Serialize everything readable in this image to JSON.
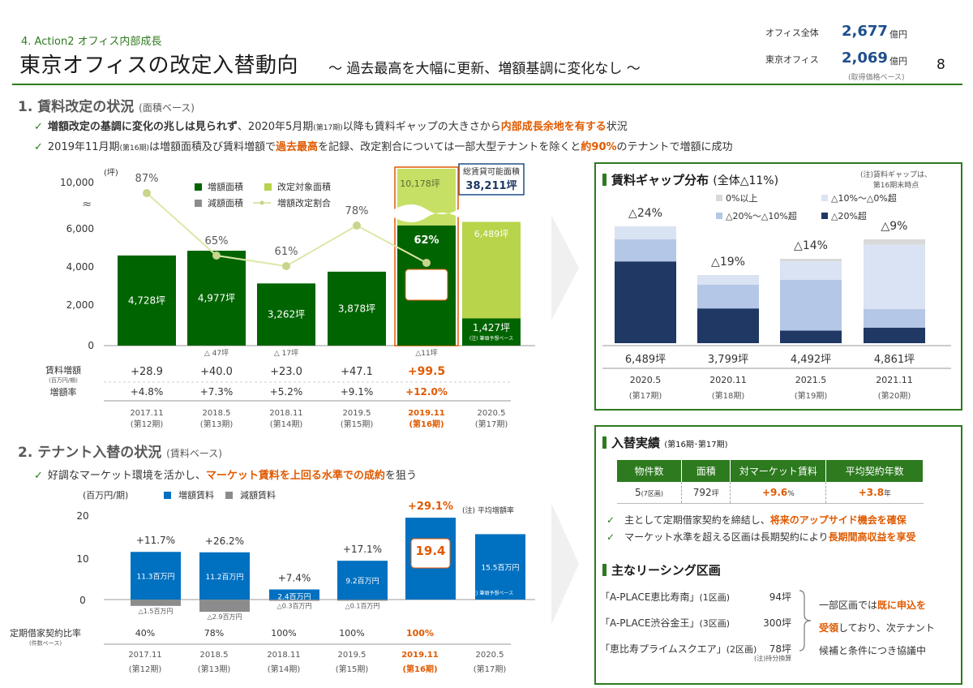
{
  "header": {
    "section_tag": "4. Action2 オフィス内部成長",
    "title": "東京オフィスの改定入替動向",
    "subtitle": "～ 過去最高を大幅に更新、増額基調に変化なし ～",
    "page_number": "8",
    "assets": [
      {
        "label": "オフィス全体",
        "value": "2,677",
        "unit": "億円"
      },
      {
        "label": "東京オフィス",
        "value": "2,069",
        "unit": "億円"
      }
    ],
    "asset_note": "(取得価格ベース)"
  },
  "section1": {
    "title": "1. 賃料改定の状況",
    "note": "(面積ベース)",
    "bullets": [
      {
        "p1": "増額改定の基調に変化の兆しは見られず",
        "p2": "、2020年5月期",
        "p3": "(第17期)",
        "p4": "以降も賃料ギャップの大きさから",
        "p5": "内部成長余地を有する",
        "p6": "状況"
      },
      {
        "p1": "2019年11月期",
        "p2": "(第16期)",
        "p3": "は増額面積及び賃料増額で",
        "p4": "過去最高",
        "p5": "を記録、改定割合については一部大型テナントを除くと",
        "p6": "約90%",
        "p7": "のテナントで増額に成功"
      }
    ]
  },
  "chart1": {
    "unit": "(坪)",
    "y_ticks": [
      "10,000",
      "6,000",
      "4,000",
      "2,000",
      "0"
    ],
    "legend": [
      "増額面積",
      "改定対象面積",
      "減額面積",
      "増額改定割合"
    ],
    "total_label": "総賃貸可能面積",
    "total_value": "38,211坪",
    "target_label": "10,178坪",
    "current_value": "6,342",
    "current_unit": "坪",
    "forecast_value": "1,427坪",
    "forecast_note": "(注) 筆頭予想ベース",
    "forecast_target": "6,489坪",
    "row_labels": {
      "rent_inc": "賃料増額",
      "rent_inc_unit": "(百万円/期)",
      "rate": "増額率"
    }
  },
  "chart_data": [
    {
      "type": "bar",
      "title": "",
      "categories": [
        "2017.11",
        "2018.5",
        "2018.11",
        "2019.5",
        "2019.11",
        "2020.5"
      ],
      "periods": [
        "(第12期)",
        "(第13期)",
        "(第14期)",
        "(第15期)",
        "(第16期)",
        "(第17期)"
      ],
      "ylabel": "(坪)",
      "ylim": [
        0,
        10000
      ],
      "series": [
        {
          "name": "増額面積",
          "values": [
            4728,
            4977,
            3262,
            3878,
            6342,
            1427
          ],
          "labels": [
            "4,728坪",
            "4,977坪",
            "3,262坪",
            "3,878坪",
            "6,342",
            "1,427坪"
          ]
        },
        {
          "name": "改定対象面積",
          "values": [
            null,
            null,
            null,
            null,
            10178,
            6489
          ]
        },
        {
          "name": "減額面積",
          "values": [
            0,
            47,
            17,
            0,
            11,
            null
          ],
          "labels": [
            "",
            "△ 47坪",
            "△ 17坪",
            "",
            "△11坪",
            ""
          ]
        },
        {
          "name": "増額改定割合",
          "values": [
            87,
            65,
            61,
            78,
            62,
            null
          ],
          "labels": [
            "87%",
            "65%",
            "61%",
            "78%",
            "62%",
            ""
          ]
        }
      ],
      "rent_increase": [
        "+28.9",
        "+40.0",
        "+23.0",
        "+47.1",
        "+99.5",
        ""
      ],
      "increase_rate": [
        "+4.8%",
        "+7.3%",
        "+5.2%",
        "+9.1%",
        "+12.0%",
        ""
      ]
    },
    {
      "type": "bar",
      "title": "賃料ギャップ分布",
      "categories": [
        "2020.5",
        "2020.11",
        "2021.5",
        "2021.11"
      ],
      "periods": [
        "(第17期)",
        "(第18期)",
        "(第19期)",
        "(第20期)"
      ],
      "totals": [
        "6,489坪",
        "3,799坪",
        "4,492坪",
        "4,861坪"
      ],
      "gap_labels": [
        "△24%",
        "△19%",
        "△14%",
        "△9%"
      ],
      "series": [
        {
          "name": "0%以上",
          "values": [
            0,
            0,
            0.03,
            0.05
          ]
        },
        {
          "name": "△10%～△0%超",
          "values": [
            0.11,
            0.14,
            0.22,
            0.62
          ]
        },
        {
          "name": "△20%～△10%超",
          "values": [
            0.19,
            0.35,
            0.6,
            0.18
          ]
        },
        {
          "name": "△20%超",
          "values": [
            0.7,
            0.51,
            0.15,
            0.15
          ]
        }
      ]
    },
    {
      "type": "bar",
      "title": "",
      "categories": [
        "2017.11",
        "2018.5",
        "2018.11",
        "2019.5",
        "2019.11",
        "2020.5"
      ],
      "periods": [
        "(第12期)",
        "(第13期)",
        "(第14期)",
        "(第15期)",
        "(第16期)",
        "(第17期)"
      ],
      "ylabel": "(百万円/期)",
      "ylim": [
        -3,
        22
      ],
      "series": [
        {
          "name": "増額賃料",
          "values": [
            11.3,
            11.2,
            2.4,
            9.2,
            19.4,
            15.5
          ],
          "labels": [
            "11.3百万円",
            "11.2百万円",
            "2.4百万円",
            "9.2百万円",
            "19.4",
            "15.5百万円"
          ]
        },
        {
          "name": "減額賃料",
          "values": [
            -1.5,
            -2.9,
            -0.3,
            -0.1,
            0,
            0
          ],
          "labels": [
            "△1.5百万円",
            "△2.9百万円",
            "△0.3百万円",
            "△0.1百万円",
            "",
            ""
          ]
        }
      ],
      "rate_labels": [
        "+11.7%",
        "+26.2%",
        "+7.4%",
        "+17.1%",
        "+29.1%",
        ""
      ],
      "fixed_term_ratio": [
        "40%",
        "78%",
        "100%",
        "100%",
        "100%",
        ""
      ]
    }
  ],
  "gap_panel": {
    "title": "賃料ギャップ分布",
    "title_total": "(全体△11%)",
    "note1": "(注)賃料ギャップは、",
    "note2": "第16期末時点",
    "legend": [
      {
        "label": "0%以上",
        "color": "#d9d9d9"
      },
      {
        "label": "△10%～△0%超",
        "color": "#dae3f3"
      },
      {
        "label": "△20%～△10%超",
        "color": "#b4c7e7"
      },
      {
        "label": "△20%超",
        "color": "#1f3864"
      }
    ]
  },
  "section2": {
    "title": "2. テナント入替の状況",
    "note": "(賃料ベース)",
    "bullet_p1": "好調なマーケット環境を活かし、",
    "bullet_p2": "マーケット賃料を上回る水準での成約",
    "bullet_p3": "を狙う",
    "legend": [
      "増額賃料",
      "減額賃料"
    ],
    "unit": "(百万円/期)",
    "avg_note": "(注) 平均増額率",
    "forecast_note": "(注) 筆頭予想ベース",
    "current_unit": "百万円",
    "y_ticks": [
      "20",
      "10",
      "0"
    ],
    "ratio_label": "定期借家契約比率",
    "ratio_sub": "(件数ベース)"
  },
  "replacement_panel": {
    "title": "入替実績",
    "title_note": "(第16期･第17期)",
    "headers": [
      "物件数",
      "面積",
      "対マーケット賃料",
      "平均契約年数"
    ],
    "values": [
      "5",
      "792",
      "+9.6",
      "+3.8"
    ],
    "units": [
      "(7区画)",
      "坪",
      "%",
      "年"
    ],
    "bullets": [
      {
        "p1": "主として定期借家契約を締結し、",
        "p2": "将来のアップサイド機会を確保"
      },
      {
        "p1": "マーケット水準を超える区画は長期契約により",
        "p2": "長期間高収益を享受"
      }
    ]
  },
  "leasing_panel": {
    "title": "主なリーシング区画",
    "items": [
      {
        "name": "「A-PLACE恵比寿南」",
        "units": "(1区画)",
        "area": "94坪"
      },
      {
        "name": "「A-PLACE渋谷金王」",
        "units": "(3区画)",
        "area": "300坪"
      },
      {
        "name": "「恵比寿プライムスクエア」",
        "units": "(2区画)",
        "area": "78坪"
      }
    ],
    "footnote": "(注)持分換算",
    "desc_1": "一部区画では",
    "desc_2": "既に申込を",
    "desc_3": "受領",
    "desc_4": "しており、次テナント",
    "desc_5": "候補と条件につき協議中"
  }
}
